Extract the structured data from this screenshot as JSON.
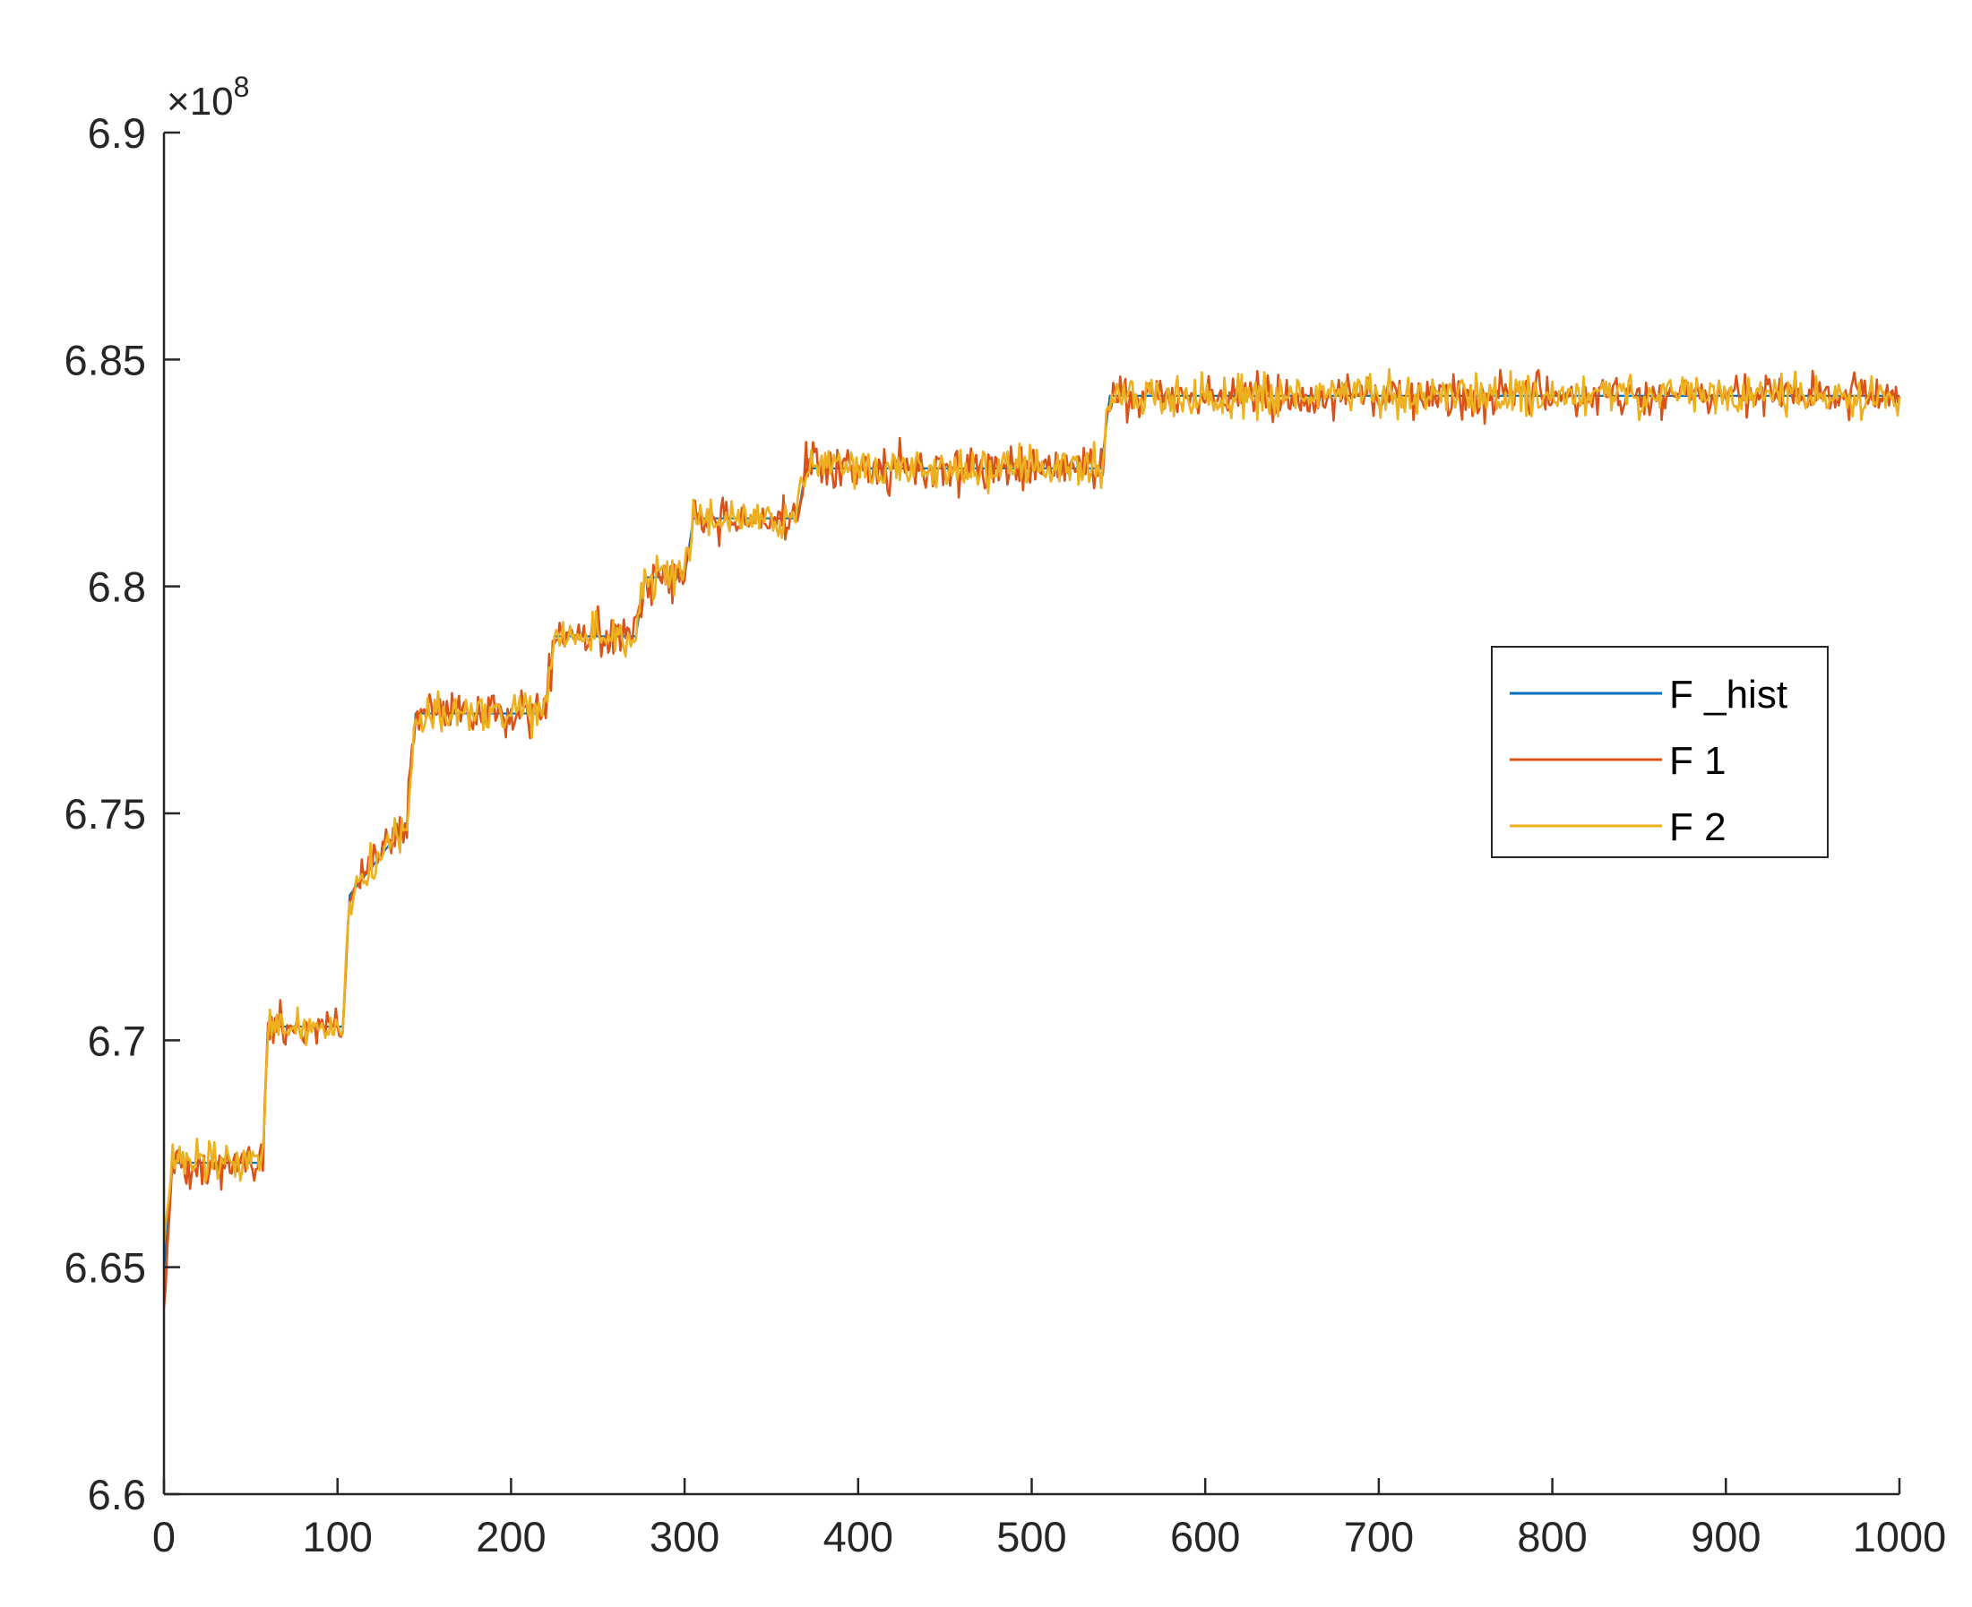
{
  "chart_data": {
    "type": "line",
    "title": "",
    "xlabel": "",
    "ylabel": "",
    "xlim": [
      0,
      1000
    ],
    "ylim": [
      6.6,
      6.9
    ],
    "y_exponent_label": "×10",
    "y_exponent_power": "8",
    "xticks": [
      "0",
      "100",
      "200",
      "300",
      "400",
      "500",
      "600",
      "700",
      "800",
      "900",
      "1000"
    ],
    "yticks": [
      "6.6",
      "6.65",
      "6.7",
      "6.75",
      "6.8",
      "6.85",
      "6.9"
    ],
    "grid": false,
    "legend_position": "right",
    "colors": {
      "F_hist": "#0072bd",
      "F1": "#d95319",
      "F2": "#edb120",
      "axis": "#262626"
    },
    "series": [
      {
        "name": "F _hist",
        "x": [
          0,
          5,
          57,
          60,
          103,
          107,
          140,
          145,
          220,
          225,
          272,
          277,
          300,
          305,
          365,
          370,
          540,
          545,
          1000
        ],
        "y": [
          6.649,
          6.673,
          6.673,
          6.703,
          6.703,
          6.732,
          6.748,
          6.772,
          6.772,
          6.789,
          6.789,
          6.802,
          6.802,
          6.815,
          6.815,
          6.826,
          6.826,
          6.842,
          6.842
        ],
        "noise": 0
      },
      {
        "name": "F 1",
        "x": [
          0,
          5,
          57,
          60,
          103,
          107,
          140,
          145,
          220,
          225,
          272,
          277,
          300,
          305,
          365,
          370,
          540,
          545,
          1000
        ],
        "y": [
          6.641,
          6.673,
          6.673,
          6.703,
          6.703,
          6.732,
          6.748,
          6.772,
          6.772,
          6.789,
          6.789,
          6.802,
          6.802,
          6.815,
          6.815,
          6.826,
          6.826,
          6.842,
          6.842
        ],
        "noise": 0.004
      },
      {
        "name": "F 2",
        "x": [
          0,
          5,
          57,
          60,
          103,
          107,
          140,
          145,
          220,
          225,
          272,
          277,
          300,
          305,
          365,
          370,
          540,
          545,
          1000
        ],
        "y": [
          6.655,
          6.673,
          6.673,
          6.703,
          6.703,
          6.732,
          6.748,
          6.772,
          6.772,
          6.789,
          6.789,
          6.802,
          6.802,
          6.815,
          6.815,
          6.826,
          6.826,
          6.842,
          6.842
        ],
        "noise": 0.0038
      }
    ]
  }
}
